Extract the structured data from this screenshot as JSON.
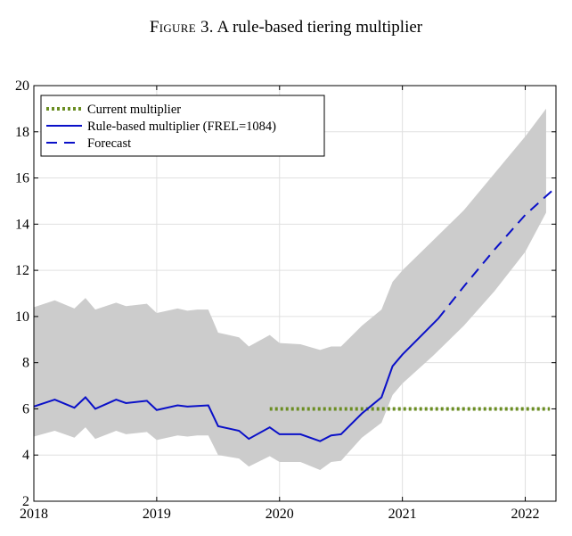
{
  "figure": {
    "label": "Figure 3.",
    "title": "A rule-based tiering multiplier"
  },
  "chart_data": {
    "type": "line",
    "title": "",
    "xlabel": "",
    "ylabel": "",
    "xlim": [
      2018.0,
      2022.25
    ],
    "ylim": [
      2,
      20
    ],
    "xticks": [
      2018,
      2019,
      2020,
      2021,
      2022
    ],
    "yticks": [
      2,
      4,
      6,
      8,
      10,
      12,
      14,
      16,
      18,
      20
    ],
    "grid": true,
    "legend_position": "top-left",
    "colors": {
      "band": "#cccccc",
      "current": "#6b8e23",
      "rule": "#0a10c8",
      "forecast": "#0a10c8"
    },
    "legend": [
      {
        "key": "current",
        "label": "Current multiplier",
        "style": "dotted"
      },
      {
        "key": "rule",
        "label": "Rule-based multiplier (FREL=1084)",
        "style": "solid"
      },
      {
        "key": "forecast",
        "label": "Forecast",
        "style": "dashed"
      }
    ],
    "band": {
      "x": [
        2018.0,
        2018.17,
        2018.33,
        2018.42,
        2018.5,
        2018.67,
        2018.75,
        2018.92,
        2019.0,
        2019.17,
        2019.25,
        2019.33,
        2019.42,
        2019.5,
        2019.67,
        2019.75,
        2019.92,
        2020.0,
        2020.17,
        2020.33,
        2020.42,
        2020.5,
        2020.67,
        2020.83,
        2020.92,
        2021.0,
        2021.25,
        2021.5,
        2021.75,
        2022.0,
        2022.17
      ],
      "upper": [
        10.4,
        10.7,
        10.35,
        10.8,
        10.3,
        10.6,
        10.45,
        10.55,
        10.15,
        10.35,
        10.25,
        10.3,
        10.3,
        9.3,
        9.1,
        8.7,
        9.2,
        8.85,
        8.8,
        8.55,
        8.7,
        8.7,
        9.6,
        10.3,
        11.5,
        12.0,
        13.3,
        14.6,
        16.2,
        17.8,
        19.0
      ],
      "lower": [
        4.8,
        5.05,
        4.75,
        5.2,
        4.7,
        5.05,
        4.9,
        5.0,
        4.65,
        4.85,
        4.8,
        4.85,
        4.85,
        4.0,
        3.85,
        3.5,
        3.95,
        3.7,
        3.7,
        3.35,
        3.7,
        3.75,
        4.75,
        5.4,
        6.6,
        7.1,
        8.3,
        9.6,
        11.1,
        12.8,
        14.5
      ]
    },
    "series": [
      {
        "key": "current",
        "name": "Current multiplier",
        "x": [
          2019.92,
          2022.2
        ],
        "y": [
          6.0,
          6.0
        ]
      },
      {
        "key": "rule",
        "name": "Rule-based multiplier (FREL=1084)",
        "x": [
          2018.0,
          2018.17,
          2018.33,
          2018.42,
          2018.5,
          2018.67,
          2018.75,
          2018.92,
          2019.0,
          2019.17,
          2019.25,
          2019.42,
          2019.5,
          2019.67,
          2019.75,
          2019.92,
          2020.0,
          2020.17,
          2020.33,
          2020.42,
          2020.5,
          2020.67,
          2020.75,
          2020.83,
          2020.92,
          2021.0,
          2021.29
        ],
        "y": [
          6.1,
          6.4,
          6.05,
          6.5,
          6.0,
          6.4,
          6.25,
          6.35,
          5.95,
          6.15,
          6.1,
          6.15,
          5.25,
          5.05,
          4.7,
          5.2,
          4.9,
          4.9,
          4.6,
          4.85,
          4.9,
          5.8,
          6.15,
          6.5,
          7.85,
          8.35,
          9.9
        ]
      },
      {
        "key": "forecast",
        "name": "Forecast",
        "x": [
          2021.29,
          2021.5,
          2021.75,
          2022.0,
          2022.25
        ],
        "y": [
          9.9,
          11.3,
          12.9,
          14.4,
          15.6
        ]
      }
    ]
  }
}
